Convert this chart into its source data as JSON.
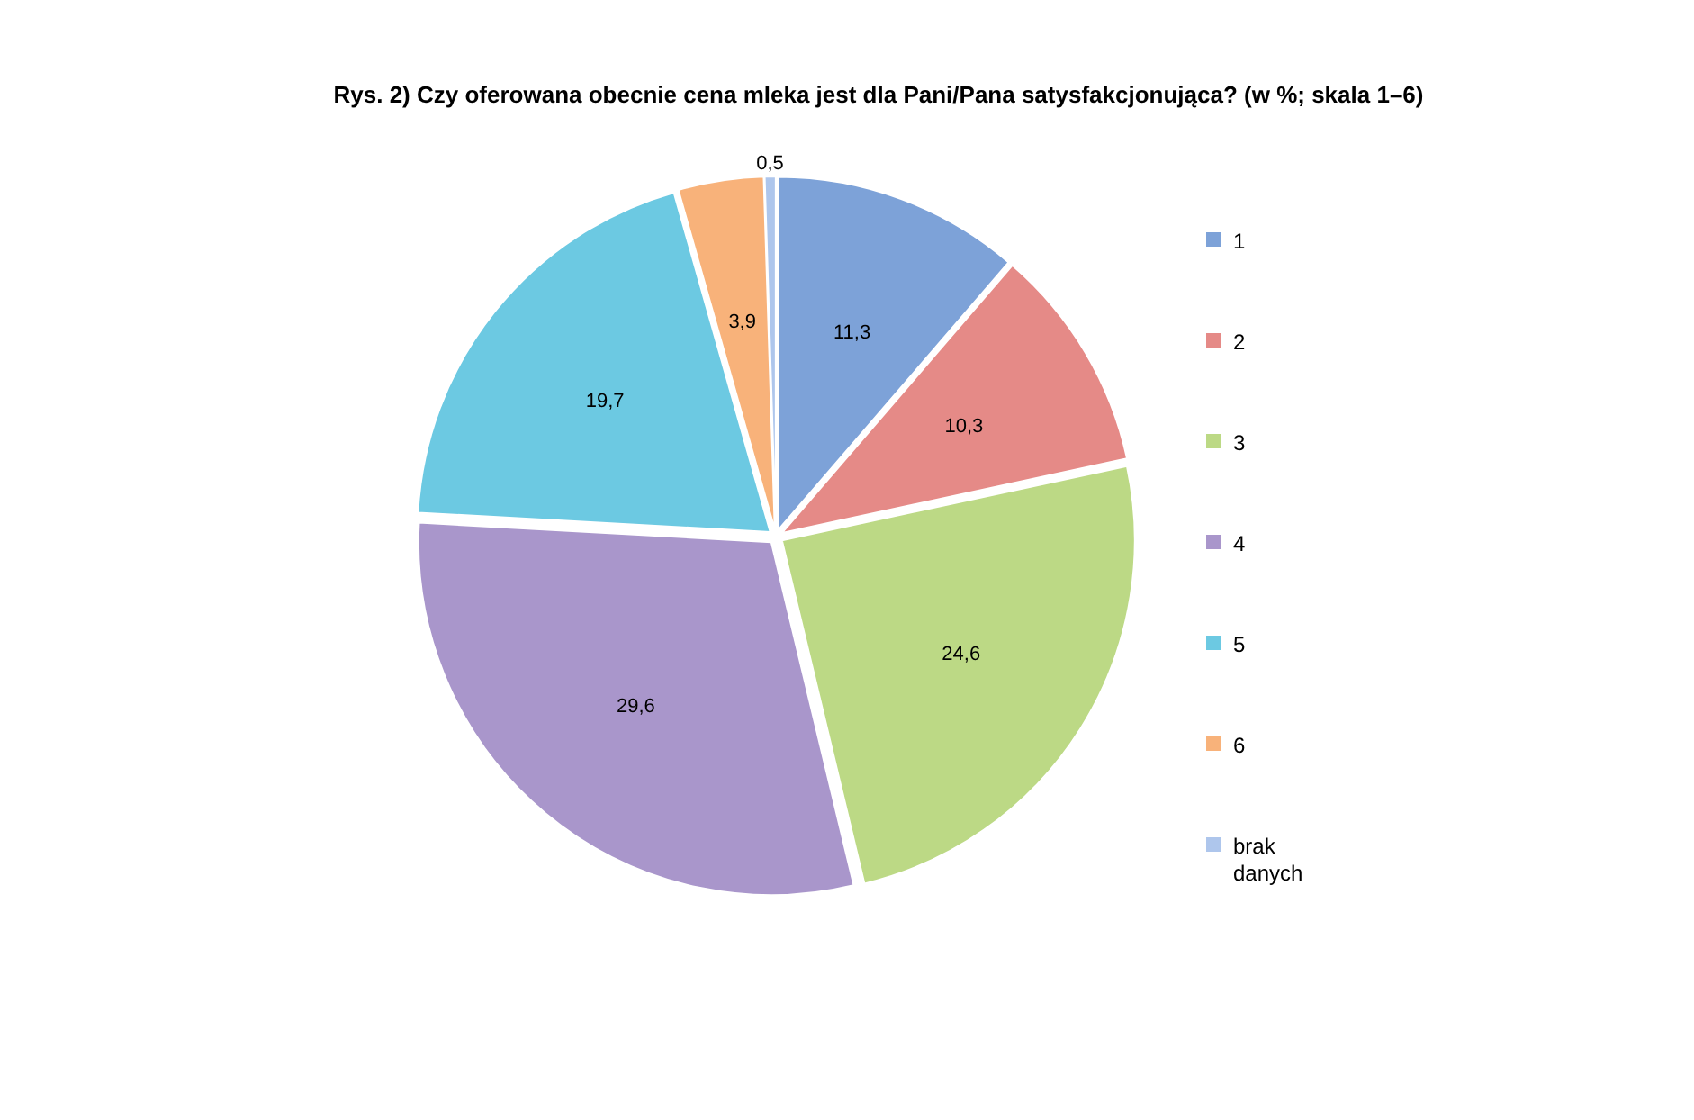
{
  "chart_data": {
    "type": "pie",
    "title": "Rys. 2) Czy oferowana obecnie cena mleka jest dla Pani/Pana satysfakcjonująca? (w %; skala 1–6)",
    "categories": [
      "1",
      "2",
      "3",
      "4",
      "5",
      "6",
      "brak danych"
    ],
    "values": [
      11.3,
      10.3,
      24.6,
      29.6,
      19.7,
      3.9,
      0.5
    ],
    "value_labels": [
      "11,3",
      "10,3",
      "24,6",
      "29,6",
      "19,7",
      "3,9",
      "0,5"
    ],
    "colors": [
      "#7da2d8",
      "#e58a87",
      "#bcd985",
      "#a996cb",
      "#6cc9e2",
      "#f8b27a",
      "#aec6ec"
    ],
    "legend": "right"
  }
}
